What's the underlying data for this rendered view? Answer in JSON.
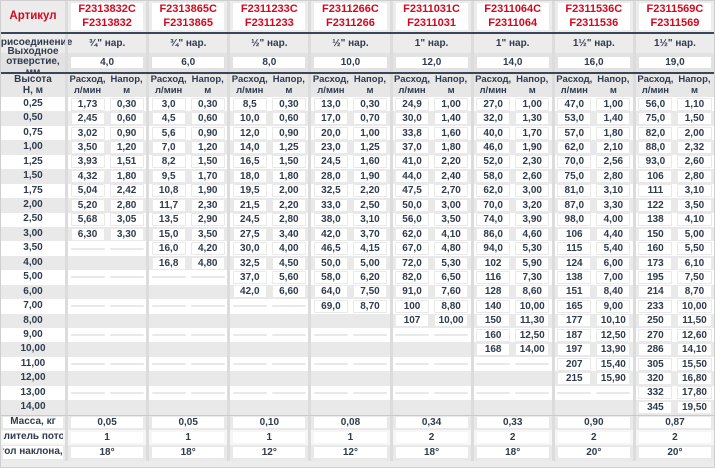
{
  "table": {
    "corner_label": "Артикул",
    "row_labels": {
      "connection": "Присоединение",
      "outlet_line1": "Выходное",
      "outlet_line2": "отверстие, мм",
      "height_line1": "Высота",
      "height_line2": "Н, м",
      "flow_line1": "Расход,",
      "flow_line2": "л/мин",
      "head_line1": "Напор,",
      "head_line2": "м",
      "mass": "Масса, кг",
      "divider": "Делитель потока",
      "angle": "Угол наклона, α"
    },
    "heights": [
      "0,25",
      "0,50",
      "0,75",
      "1,00",
      "1,25",
      "1,50",
      "1,75",
      "2,00",
      "2,50",
      "3,00",
      "3,50",
      "4,00",
      "5,00",
      "6,00",
      "7,00",
      "8,00",
      "9,00",
      "10,00",
      "11,00",
      "12,00",
      "13,00",
      "14,00"
    ],
    "columns": [
      {
        "article_c": "F2313832C",
        "article": "F2313832",
        "connection": "¾\" нар.",
        "outlet": "4,0",
        "mass": "0,05",
        "divider": "1",
        "angle": "18°",
        "rows": [
          [
            "1,73",
            "0,30"
          ],
          [
            "2,45",
            "0,60"
          ],
          [
            "3,02",
            "0,90"
          ],
          [
            "3,50",
            "1,20"
          ],
          [
            "3,93",
            "1,51"
          ],
          [
            "4,32",
            "1,80"
          ],
          [
            "5,04",
            "2,42"
          ],
          [
            "5,20",
            "2,80"
          ],
          [
            "5,68",
            "3,05"
          ],
          [
            "6,30",
            "3,30"
          ],
          [
            "",
            ""
          ],
          [
            "",
            ""
          ],
          [
            "",
            ""
          ],
          [
            "",
            ""
          ],
          [
            "",
            ""
          ],
          [
            "",
            ""
          ],
          [
            "",
            ""
          ],
          [
            "",
            ""
          ],
          [
            "",
            ""
          ],
          [
            "",
            ""
          ],
          [
            "",
            ""
          ],
          [
            "",
            ""
          ]
        ]
      },
      {
        "article_c": "F2313865C",
        "article": "F2313865",
        "connection": "¾\" нар.",
        "outlet": "6,0",
        "mass": "0,05",
        "divider": "1",
        "angle": "18°",
        "rows": [
          [
            "3,0",
            "0,30"
          ],
          [
            "4,5",
            "0,60"
          ],
          [
            "5,6",
            "0,90"
          ],
          [
            "7,0",
            "1,20"
          ],
          [
            "8,2",
            "1,50"
          ],
          [
            "9,5",
            "1,70"
          ],
          [
            "10,8",
            "1,90"
          ],
          [
            "11,7",
            "2,30"
          ],
          [
            "13,5",
            "2,90"
          ],
          [
            "15,0",
            "3,50"
          ],
          [
            "16,0",
            "4,20"
          ],
          [
            "16,8",
            "4,80"
          ],
          [
            "",
            ""
          ],
          [
            "",
            ""
          ],
          [
            "",
            ""
          ],
          [
            "",
            ""
          ],
          [
            "",
            ""
          ],
          [
            "",
            ""
          ],
          [
            "",
            ""
          ],
          [
            "",
            ""
          ],
          [
            "",
            ""
          ],
          [
            "",
            ""
          ]
        ]
      },
      {
        "article_c": "F2311233C",
        "article": "F2311233",
        "connection": "½\" нар.",
        "outlet": "8,0",
        "mass": "0,10",
        "divider": "1",
        "angle": "12°",
        "rows": [
          [
            "8,5",
            "0,30"
          ],
          [
            "10,0",
            "0,60"
          ],
          [
            "12,0",
            "0,90"
          ],
          [
            "14,0",
            "1,25"
          ],
          [
            "16,5",
            "1,50"
          ],
          [
            "18,0",
            "1,80"
          ],
          [
            "19,5",
            "2,00"
          ],
          [
            "21,5",
            "2,20"
          ],
          [
            "24,5",
            "2,80"
          ],
          [
            "27,5",
            "3,40"
          ],
          [
            "30,0",
            "4,00"
          ],
          [
            "32,5",
            "4,50"
          ],
          [
            "37,0",
            "5,60"
          ],
          [
            "42,0",
            "6,60"
          ],
          [
            "",
            ""
          ],
          [
            "",
            ""
          ],
          [
            "",
            ""
          ],
          [
            "",
            ""
          ],
          [
            "",
            ""
          ],
          [
            "",
            ""
          ],
          [
            "",
            ""
          ],
          [
            "",
            ""
          ]
        ]
      },
      {
        "article_c": "F2311266C",
        "article": "F2311266",
        "connection": "½\" нар.",
        "outlet": "10,0",
        "mass": "0,08",
        "divider": "1",
        "angle": "12°",
        "rows": [
          [
            "13,0",
            "0,30"
          ],
          [
            "17,0",
            "0,70"
          ],
          [
            "20,0",
            "1,00"
          ],
          [
            "23,0",
            "1,25"
          ],
          [
            "24,5",
            "1,60"
          ],
          [
            "28,0",
            "1,90"
          ],
          [
            "32,5",
            "2,20"
          ],
          [
            "33,0",
            "2,50"
          ],
          [
            "38,0",
            "3,10"
          ],
          [
            "42,0",
            "3,70"
          ],
          [
            "46,5",
            "4,15"
          ],
          [
            "50,0",
            "5,00"
          ],
          [
            "58,0",
            "6,20"
          ],
          [
            "64,0",
            "7,50"
          ],
          [
            "69,0",
            "8,70"
          ],
          [
            "",
            ""
          ],
          [
            "",
            ""
          ],
          [
            "",
            ""
          ],
          [
            "",
            ""
          ],
          [
            "",
            ""
          ],
          [
            "",
            ""
          ],
          [
            "",
            ""
          ]
        ]
      },
      {
        "article_c": "F2311031C",
        "article": "F2311031",
        "connection": "1\" нар.",
        "outlet": "12,0",
        "mass": "0,34",
        "divider": "2",
        "angle": "18°",
        "rows": [
          [
            "24,9",
            "1,00"
          ],
          [
            "30,0",
            "1,40"
          ],
          [
            "33,8",
            "1,60"
          ],
          [
            "37,0",
            "1,80"
          ],
          [
            "41,0",
            "2,20"
          ],
          [
            "44,0",
            "2,40"
          ],
          [
            "47,5",
            "2,70"
          ],
          [
            "50,0",
            "3,00"
          ],
          [
            "56,0",
            "3,50"
          ],
          [
            "62,0",
            "4,10"
          ],
          [
            "67,0",
            "4,80"
          ],
          [
            "72,0",
            "5,30"
          ],
          [
            "82,0",
            "6,50"
          ],
          [
            "91,0",
            "7,60"
          ],
          [
            "100",
            "8,80"
          ],
          [
            "107",
            "10,00"
          ],
          [
            "",
            ""
          ],
          [
            "",
            ""
          ],
          [
            "",
            ""
          ],
          [
            "",
            ""
          ],
          [
            "",
            ""
          ],
          [
            "",
            ""
          ]
        ]
      },
      {
        "article_c": "F2311064C",
        "article": "F2311064",
        "connection": "1\" нар.",
        "outlet": "14,0",
        "mass": "0,33",
        "divider": "2",
        "angle": "18°",
        "rows": [
          [
            "27,0",
            "1,00"
          ],
          [
            "32,0",
            "1,30"
          ],
          [
            "40,0",
            "1,70"
          ],
          [
            "46,0",
            "1,90"
          ],
          [
            "52,0",
            "2,30"
          ],
          [
            "58,0",
            "2,60"
          ],
          [
            "62,0",
            "3,00"
          ],
          [
            "70,0",
            "3,20"
          ],
          [
            "74,0",
            "3,90"
          ],
          [
            "86,0",
            "4,60"
          ],
          [
            "94,0",
            "5,30"
          ],
          [
            "102",
            "5,90"
          ],
          [
            "116",
            "7,30"
          ],
          [
            "128",
            "8,60"
          ],
          [
            "140",
            "10,00"
          ],
          [
            "150",
            "11,30"
          ],
          [
            "160",
            "12,50"
          ],
          [
            "168",
            "14,00"
          ],
          [
            "",
            ""
          ],
          [
            "",
            ""
          ],
          [
            "",
            ""
          ],
          [
            "",
            ""
          ]
        ]
      },
      {
        "article_c": "F2311536C",
        "article": "F2311536",
        "connection": "1½\" нар.",
        "outlet": "16,0",
        "mass": "0,90",
        "divider": "2",
        "angle": "20°",
        "rows": [
          [
            "47,0",
            "1,00"
          ],
          [
            "53,0",
            "1,40"
          ],
          [
            "57,0",
            "1,80"
          ],
          [
            "62,0",
            "2,10"
          ],
          [
            "70,0",
            "2,56"
          ],
          [
            "75,0",
            "2,80"
          ],
          [
            "81,0",
            "3,10"
          ],
          [
            "87,0",
            "3,30"
          ],
          [
            "98,0",
            "4,00"
          ],
          [
            "106",
            "4,40"
          ],
          [
            "115",
            "5,40"
          ],
          [
            "124",
            "6,00"
          ],
          [
            "138",
            "7,00"
          ],
          [
            "151",
            "8,40"
          ],
          [
            "165",
            "9,00"
          ],
          [
            "177",
            "10,10"
          ],
          [
            "187",
            "12,50"
          ],
          [
            "197",
            "13,90"
          ],
          [
            "207",
            "15,40"
          ],
          [
            "215",
            "15,90"
          ],
          [
            "",
            ""
          ],
          [
            "",
            ""
          ]
        ]
      },
      {
        "article_c": "F2311569C",
        "article": "F2311569",
        "connection": "1½\" нар.",
        "outlet": "19,0",
        "mass": "0,87",
        "divider": "2",
        "angle": "20°",
        "rows": [
          [
            "56,0",
            "1,10"
          ],
          [
            "75,0",
            "1,50"
          ],
          [
            "82,0",
            "2,00"
          ],
          [
            "88,0",
            "2,32"
          ],
          [
            "93,0",
            "2,60"
          ],
          [
            "106",
            "2,80"
          ],
          [
            "111",
            "3,10"
          ],
          [
            "122",
            "3,50"
          ],
          [
            "138",
            "4,10"
          ],
          [
            "150",
            "5,00"
          ],
          [
            "160",
            "5,50"
          ],
          [
            "173",
            "6,10"
          ],
          [
            "195",
            "7,50"
          ],
          [
            "214",
            "8,70"
          ],
          [
            "233",
            "10,00"
          ],
          [
            "250",
            "11,50"
          ],
          [
            "270",
            "12,60"
          ],
          [
            "286",
            "14,10"
          ],
          [
            "305",
            "15,50"
          ],
          [
            "320",
            "16,80"
          ],
          [
            "332",
            "17,80"
          ],
          [
            "345",
            "19,50"
          ]
        ]
      }
    ],
    "colors": {
      "accent_red": "#d2091e",
      "ink": "#303b4d",
      "dark_rule": "#3c4555",
      "stripe": "#e9e9e9"
    }
  }
}
